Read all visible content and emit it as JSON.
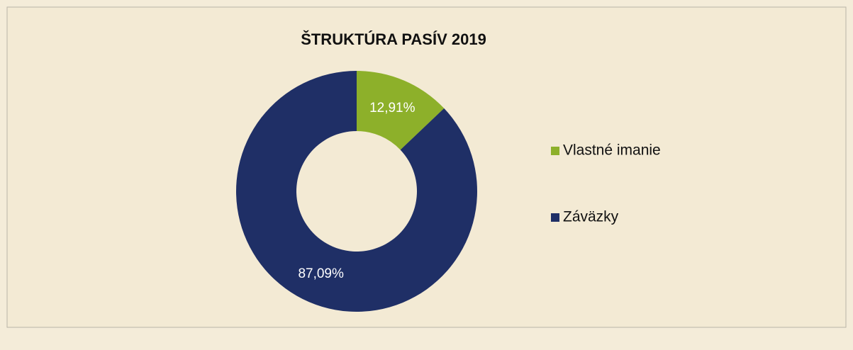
{
  "chart_data": {
    "type": "donut",
    "title": "ŠTRUKTÚRA PASÍV 2019",
    "categories": [
      "Vlastné imanie",
      "Záväzky"
    ],
    "values": [
      12.91,
      87.09
    ],
    "value_labels": [
      "12,91%",
      "87,09%"
    ],
    "colors": [
      "#8db02a",
      "#1f2f66"
    ],
    "legend": "right"
  }
}
